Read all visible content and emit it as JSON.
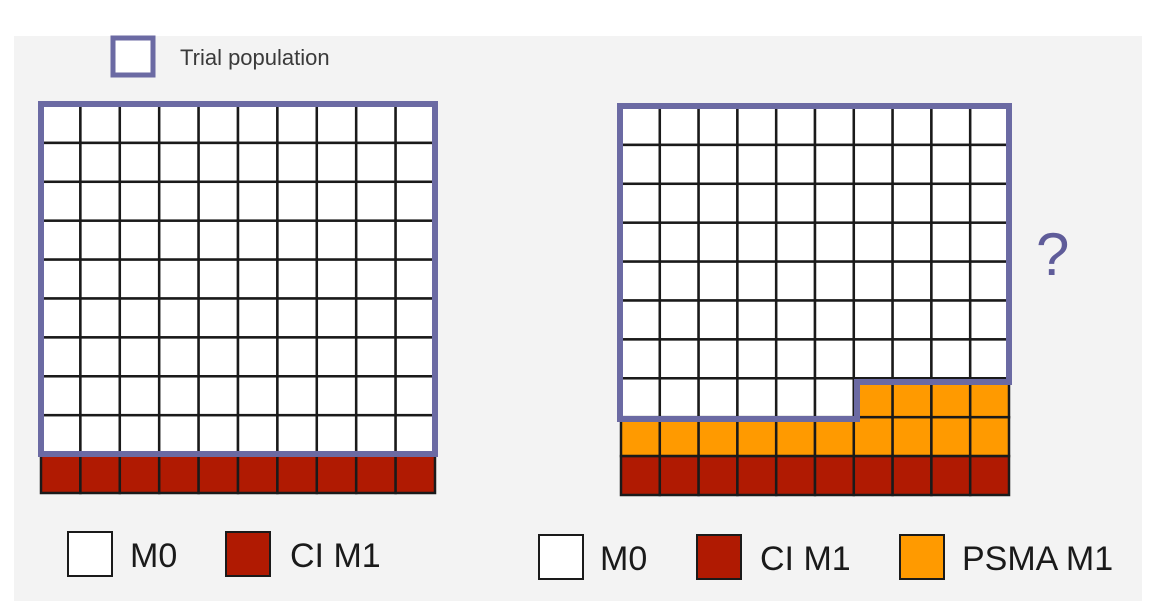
{
  "colors": {
    "m0": "#ffffff",
    "ci_m1": "#b01a02",
    "psma_m1": "#ff9a00",
    "grid_line": "#1a1a1a",
    "trial_outline": "#6b6aa3",
    "background_panel": "#f2f2f2"
  },
  "header_legend": {
    "label": "Trial population"
  },
  "left_grid": {
    "rows": 10,
    "cols": 10,
    "rows_top_to_bottom": [
      "M0 x10",
      "M0 x10",
      "M0 x10",
      "M0 x10",
      "M0 x10",
      "M0 x10",
      "M0 x10",
      "M0 x10",
      "M0 x10",
      "CI M1 x10"
    ],
    "counts": {
      "M0": 90,
      "CI M1": 10
    },
    "trial_population_cells": 90
  },
  "right_grid": {
    "rows": 10,
    "cols": 10,
    "counts": {
      "M0": 76,
      "PSMA M1": 14,
      "CI M1": 10
    },
    "row_8_psma_cols": [
      6,
      7,
      8,
      9
    ],
    "row_9": "PSMA M1 x10",
    "row_10": "CI M1 x10",
    "trial_population_cells": 76,
    "question_mark": "?"
  },
  "left_key": [
    {
      "label": "M0",
      "color_key": "m0"
    },
    {
      "label": "CI M1",
      "color_key": "ci_m1"
    }
  ],
  "right_key": [
    {
      "label": "M0",
      "color_key": "m0"
    },
    {
      "label": "CI M1",
      "color_key": "ci_m1"
    },
    {
      "label": "PSMA M1",
      "color_key": "psma_m1"
    }
  ]
}
